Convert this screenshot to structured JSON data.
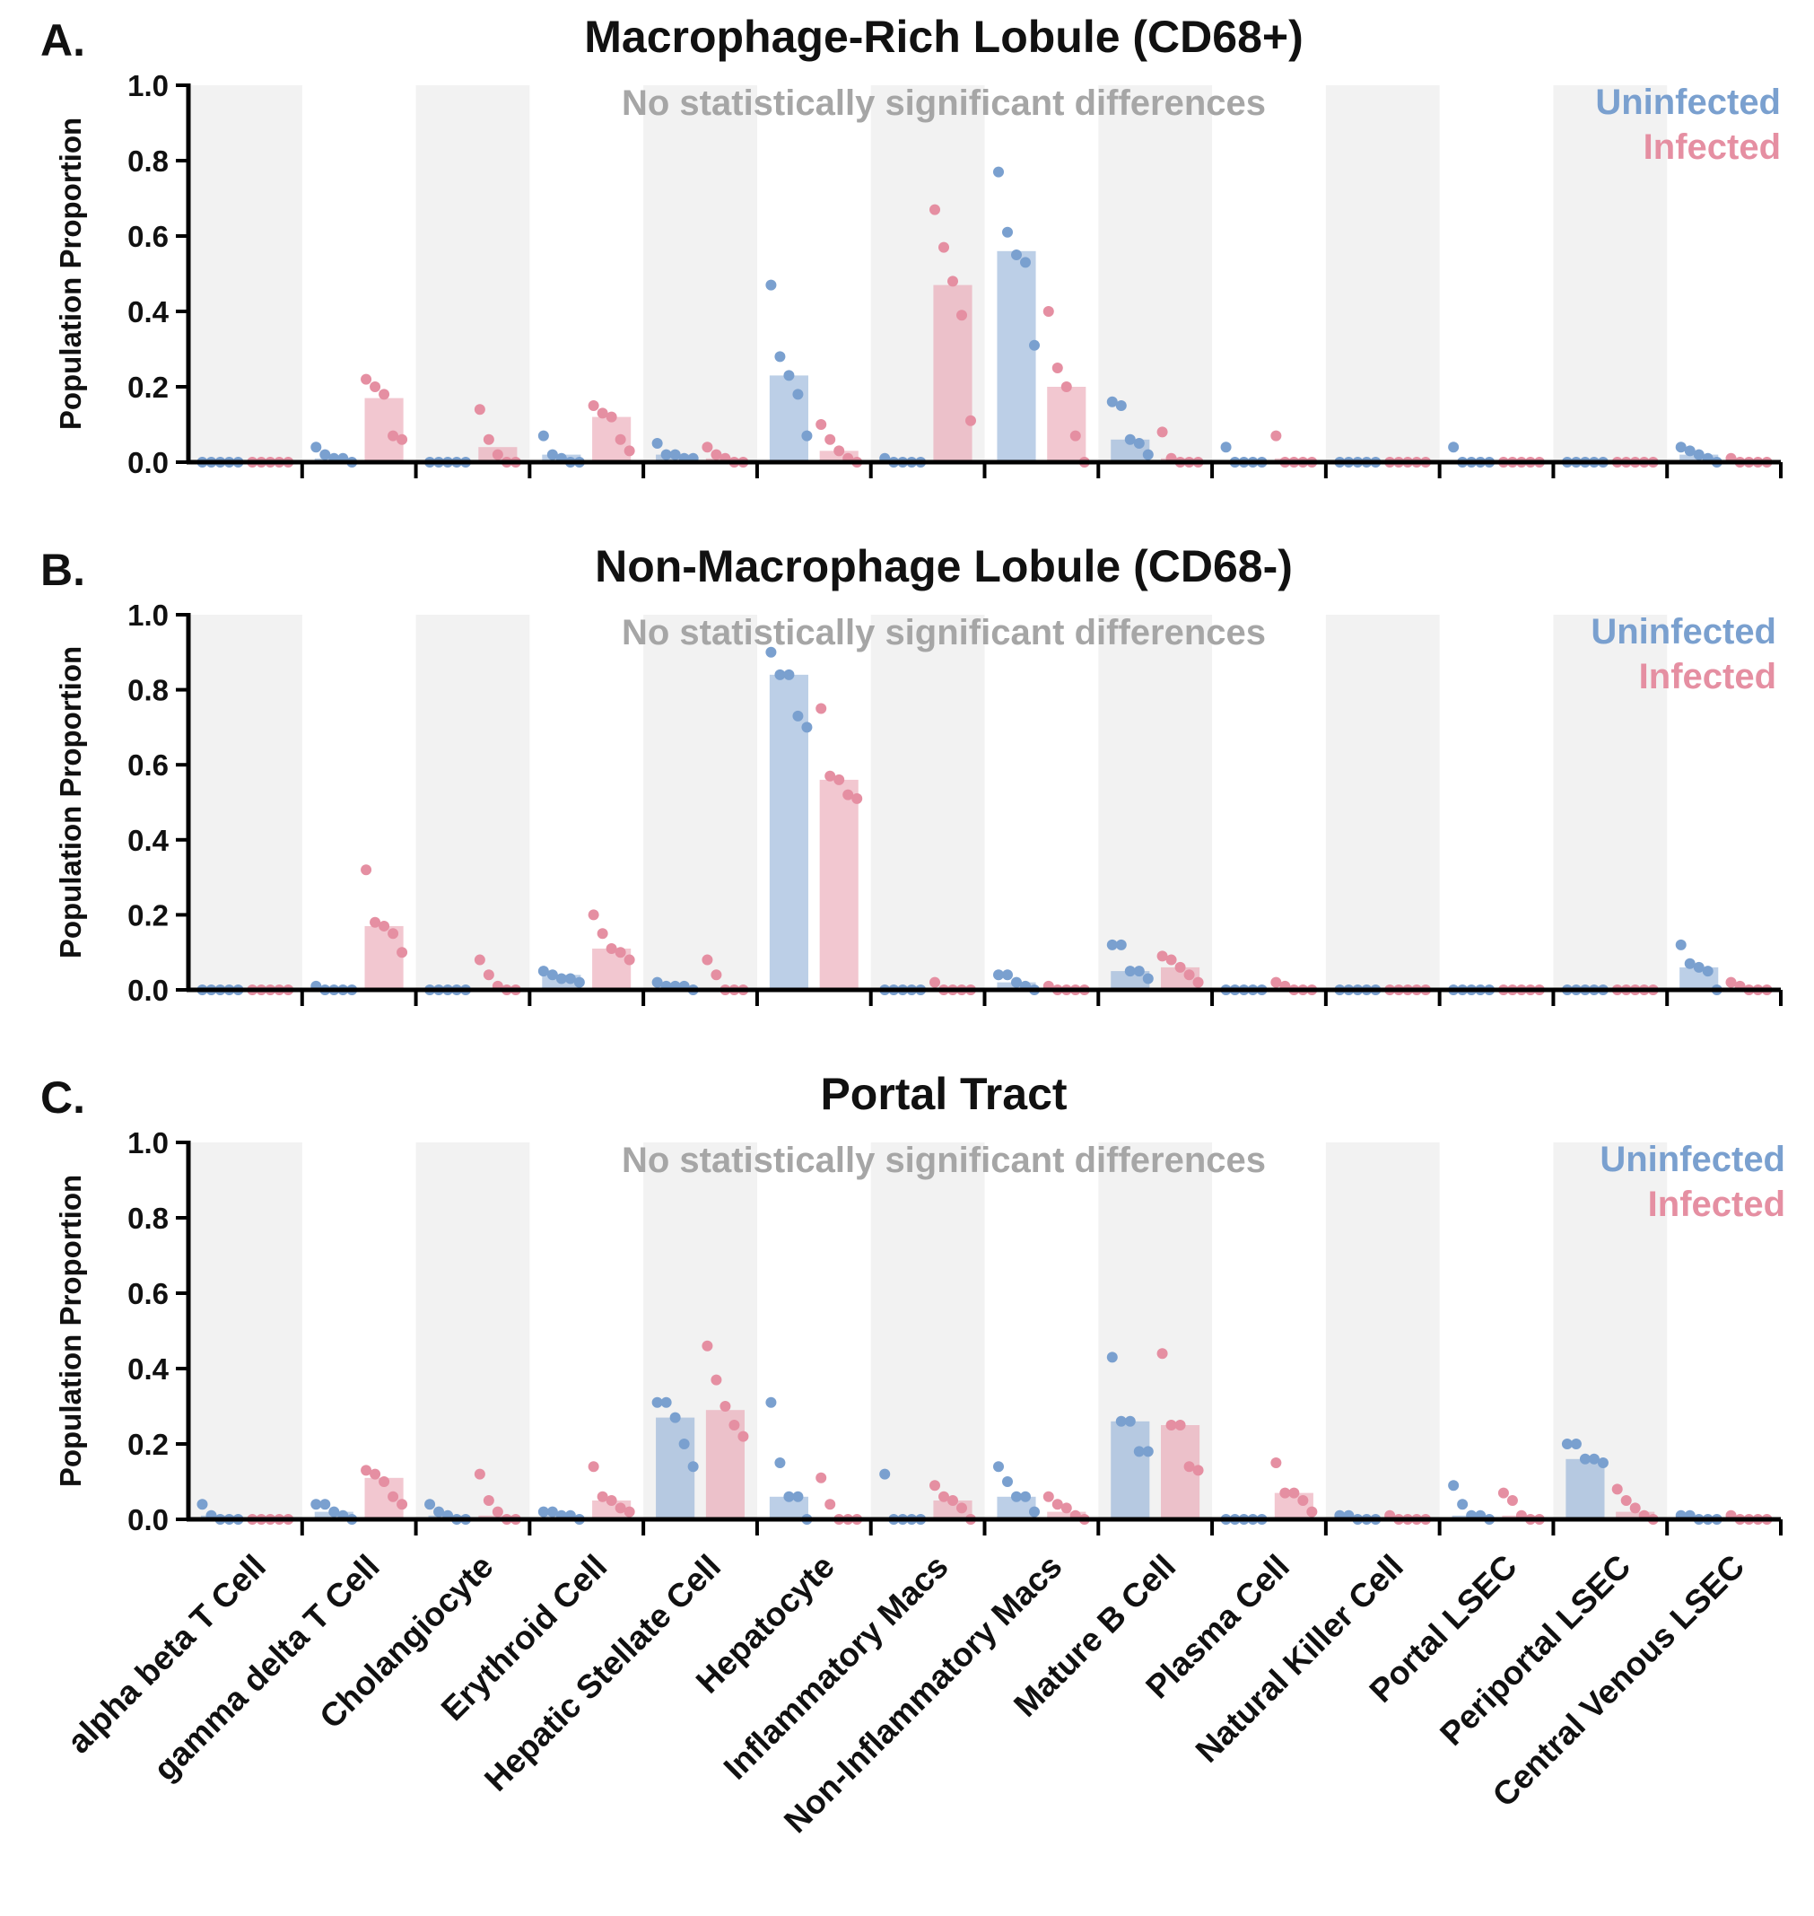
{
  "chart_data": [
    {
      "type": "bar",
      "panel_label": "A.",
      "title": "Macrophage-Rich Lobule (CD68+)",
      "ylabel": "Population Proportion",
      "ylim": [
        0,
        1.0
      ],
      "yticks": [
        "0.0",
        "0.2",
        "0.4",
        "0.6",
        "0.8",
        "1.0"
      ],
      "note": "No statistically significant differences",
      "categories": [
        "alpha beta T Cell",
        "gamma delta T Cell",
        "Cholangiocyte",
        "Erythroid Cell",
        "Hepatic Stellate Cell",
        "Hepatocyte",
        "Inflammatory Macs",
        "Non-Inflammatory Macs",
        "Mature B Cell",
        "Plasma Cell",
        "Natural Killer Cell",
        "Portal LSEC",
        "Periportal LSEC",
        "Central Venous LSEC"
      ],
      "series": [
        {
          "name": "Uninfected",
          "color": "#7aa0cf",
          "values": [
            0.0,
            0.01,
            0.0,
            0.02,
            0.02,
            0.23,
            0.0,
            0.56,
            0.06,
            0.0,
            0.0,
            0.0,
            0.0,
            0.02
          ],
          "points": [
            [
              0,
              0,
              0,
              0,
              0
            ],
            [
              0.04,
              0.02,
              0.01,
              0.01,
              0.0
            ],
            [
              0,
              0,
              0,
              0,
              0
            ],
            [
              0.07,
              0.02,
              0.01,
              0.0,
              0.0
            ],
            [
              0.05,
              0.02,
              0.02,
              0.01,
              0.01
            ],
            [
              0.47,
              0.28,
              0.23,
              0.18,
              0.07
            ],
            [
              0.01,
              0.0,
              0.0,
              0.0,
              0.0
            ],
            [
              0.77,
              0.61,
              0.55,
              0.53,
              0.31
            ],
            [
              0.16,
              0.15,
              0.06,
              0.05,
              0.02
            ],
            [
              0.04,
              0.0,
              0.0,
              0.0,
              0.0
            ],
            [
              0,
              0,
              0,
              0,
              0
            ],
            [
              0.04,
              0.0,
              0.0,
              0.0,
              0.0
            ],
            [
              0,
              0,
              0,
              0,
              0
            ],
            [
              0.04,
              0.03,
              0.02,
              0.01,
              0.0
            ]
          ]
        },
        {
          "name": "Infected",
          "color": "#e58fa2",
          "values": [
            0.0,
            0.17,
            0.04,
            0.12,
            0.01,
            0.03,
            0.47,
            0.2,
            0.01,
            0.01,
            0.0,
            0.0,
            0.0,
            0.0
          ],
          "points": [
            [
              0,
              0,
              0,
              0,
              0
            ],
            [
              0.22,
              0.2,
              0.18,
              0.07,
              0.06
            ],
            [
              0.14,
              0.06,
              0.02,
              0.0,
              0.0
            ],
            [
              0.15,
              0.13,
              0.12,
              0.06,
              0.03
            ],
            [
              0.04,
              0.02,
              0.01,
              0.0,
              0.0
            ],
            [
              0.1,
              0.06,
              0.03,
              0.01,
              0.0
            ],
            [
              0.67,
              0.57,
              0.48,
              0.39,
              0.11
            ],
            [
              0.4,
              0.25,
              0.2,
              0.07,
              0.0
            ],
            [
              0.08,
              0.01,
              0.0,
              0.0,
              0.0
            ],
            [
              0.07,
              0.0,
              0.0,
              0.0,
              0.0
            ],
            [
              0,
              0,
              0,
              0,
              0
            ],
            [
              0,
              0,
              0,
              0,
              0
            ],
            [
              0,
              0,
              0,
              0,
              0
            ],
            [
              0.01,
              0.0,
              0.0,
              0.0,
              0.0
            ]
          ]
        }
      ]
    },
    {
      "type": "bar",
      "panel_label": "B.",
      "title": "Non-Macrophage Lobule (CD68-)",
      "ylabel": "Population Proportion",
      "ylim": [
        0,
        1.0
      ],
      "yticks": [
        "0.0",
        "0.2",
        "0.4",
        "0.6",
        "0.8",
        "1.0"
      ],
      "note": "No statistically significant differences",
      "categories": [
        "alpha beta T Cell",
        "gamma delta T Cell",
        "Cholangiocyte",
        "Erythroid Cell",
        "Hepatic Stellate Cell",
        "Hepatocyte",
        "Inflammatory Macs",
        "Non-Inflammatory Macs",
        "Mature B Cell",
        "Plasma Cell",
        "Natural Killer Cell",
        "Portal LSEC",
        "Periportal LSEC",
        "Central Venous LSEC"
      ],
      "series": [
        {
          "name": "Uninfected",
          "color": "#7aa0cf",
          "values": [
            0.0,
            0.0,
            0.0,
            0.04,
            0.01,
            0.84,
            0.0,
            0.02,
            0.05,
            0.0,
            0.0,
            0.0,
            0.0,
            0.06
          ],
          "points": [
            [
              0,
              0,
              0,
              0,
              0
            ],
            [
              0.01,
              0.0,
              0.0,
              0.0,
              0.0
            ],
            [
              0,
              0,
              0,
              0,
              0
            ],
            [
              0.05,
              0.04,
              0.03,
              0.03,
              0.02
            ],
            [
              0.02,
              0.01,
              0.01,
              0.01,
              0.0
            ],
            [
              0.9,
              0.84,
              0.84,
              0.73,
              0.7
            ],
            [
              0,
              0,
              0,
              0,
              0
            ],
            [
              0.04,
              0.04,
              0.02,
              0.01,
              0.0
            ],
            [
              0.12,
              0.12,
              0.05,
              0.05,
              0.03
            ],
            [
              0,
              0,
              0,
              0,
              0
            ],
            [
              0,
              0,
              0,
              0,
              0
            ],
            [
              0,
              0,
              0,
              0,
              0
            ],
            [
              0,
              0,
              0,
              0,
              0
            ],
            [
              0.12,
              0.07,
              0.06,
              0.05,
              0.0
            ]
          ]
        },
        {
          "name": "Infected",
          "color": "#e58fa2",
          "values": [
            0.0,
            0.17,
            0.0,
            0.11,
            0.0,
            0.56,
            0.0,
            0.0,
            0.06,
            0.0,
            0.0,
            0.0,
            0.0,
            0.0
          ],
          "points": [
            [
              0,
              0,
              0,
              0,
              0
            ],
            [
              0.32,
              0.18,
              0.17,
              0.15,
              0.1
            ],
            [
              0.08,
              0.04,
              0.01,
              0.0,
              0.0
            ],
            [
              0.2,
              0.15,
              0.11,
              0.1,
              0.08
            ],
            [
              0.08,
              0.04,
              0.0,
              0.0,
              0.0
            ],
            [
              0.75,
              0.57,
              0.56,
              0.52,
              0.51
            ],
            [
              0.02,
              0.0,
              0.0,
              0.0,
              0.0
            ],
            [
              0.01,
              0.0,
              0.0,
              0.0,
              0.0
            ],
            [
              0.09,
              0.08,
              0.06,
              0.04,
              0.02
            ],
            [
              0.02,
              0.01,
              0.0,
              0.0,
              0.0
            ],
            [
              0,
              0,
              0,
              0,
              0
            ],
            [
              0,
              0,
              0,
              0,
              0
            ],
            [
              0,
              0,
              0,
              0,
              0
            ],
            [
              0.02,
              0.01,
              0.0,
              0.0,
              0.0
            ]
          ]
        }
      ]
    },
    {
      "type": "bar",
      "panel_label": "C.",
      "title": "Portal Tract",
      "ylabel": "Population Proportion",
      "ylim": [
        0,
        1.0
      ],
      "yticks": [
        "0.0",
        "0.2",
        "0.4",
        "0.6",
        "0.8",
        "1.0"
      ],
      "note": "No statistically significant differences",
      "categories": [
        "alpha beta T Cell",
        "gamma delta T Cell",
        "Cholangiocyte",
        "Erythroid Cell",
        "Hepatic Stellate Cell",
        "Hepatocyte",
        "Inflammatory Macs",
        "Non-Inflammatory Macs",
        "Mature B Cell",
        "Plasma Cell",
        "Natural Killer Cell",
        "Portal LSEC",
        "Periportal LSEC",
        "Central Venous LSEC"
      ],
      "series": [
        {
          "name": "Uninfected",
          "color": "#7aa0cf",
          "values": [
            0.01,
            0.02,
            0.01,
            0.01,
            0.27,
            0.06,
            0.0,
            0.06,
            0.26,
            0.0,
            0.0,
            0.01,
            0.16,
            0.0
          ],
          "points": [
            [
              0.04,
              0.01,
              0.0,
              0.0,
              0.0
            ],
            [
              0.04,
              0.04,
              0.02,
              0.01,
              0.0
            ],
            [
              0.04,
              0.02,
              0.01,
              0.0,
              0.0
            ],
            [
              0.02,
              0.02,
              0.01,
              0.01,
              0.0
            ],
            [
              0.31,
              0.31,
              0.27,
              0.2,
              0.14
            ],
            [
              0.31,
              0.15,
              0.06,
              0.06,
              0.0
            ],
            [
              0.12,
              0.0,
              0.0,
              0.0,
              0.0
            ],
            [
              0.14,
              0.1,
              0.06,
              0.06,
              0.02
            ],
            [
              0.43,
              0.26,
              0.26,
              0.18,
              0.18
            ],
            [
              0,
              0,
              0,
              0,
              0
            ],
            [
              0.01,
              0.01,
              0.0,
              0.0,
              0.0
            ],
            [
              0.09,
              0.04,
              0.01,
              0.01,
              0.0
            ],
            [
              0.2,
              0.2,
              0.16,
              0.16,
              0.15
            ],
            [
              0.01,
              0.01,
              0.0,
              0.0,
              0.0
            ]
          ]
        },
        {
          "name": "Infected",
          "color": "#e58fa2",
          "values": [
            0.0,
            0.11,
            0.01,
            0.05,
            0.29,
            0.0,
            0.05,
            0.02,
            0.25,
            0.07,
            0.0,
            0.01,
            0.02,
            0.0
          ],
          "points": [
            [
              0,
              0,
              0,
              0,
              0
            ],
            [
              0.13,
              0.12,
              0.1,
              0.06,
              0.04
            ],
            [
              0.12,
              0.05,
              0.02,
              0.0,
              0.0
            ],
            [
              0.14,
              0.06,
              0.05,
              0.03,
              0.02
            ],
            [
              0.46,
              0.37,
              0.3,
              0.25,
              0.22
            ],
            [
              0.11,
              0.04,
              0.0,
              0.0,
              0.0
            ],
            [
              0.09,
              0.06,
              0.05,
              0.03,
              0.0
            ],
            [
              0.06,
              0.04,
              0.03,
              0.01,
              0.0
            ],
            [
              0.44,
              0.25,
              0.25,
              0.14,
              0.13
            ],
            [
              0.15,
              0.07,
              0.07,
              0.05,
              0.02
            ],
            [
              0.01,
              0.0,
              0.0,
              0.0,
              0.0
            ],
            [
              0.07,
              0.05,
              0.01,
              0.0,
              0.0
            ],
            [
              0.08,
              0.05,
              0.03,
              0.01,
              0.0
            ],
            [
              0.01,
              0.0,
              0.0,
              0.0,
              0.0
            ]
          ]
        }
      ]
    }
  ]
}
